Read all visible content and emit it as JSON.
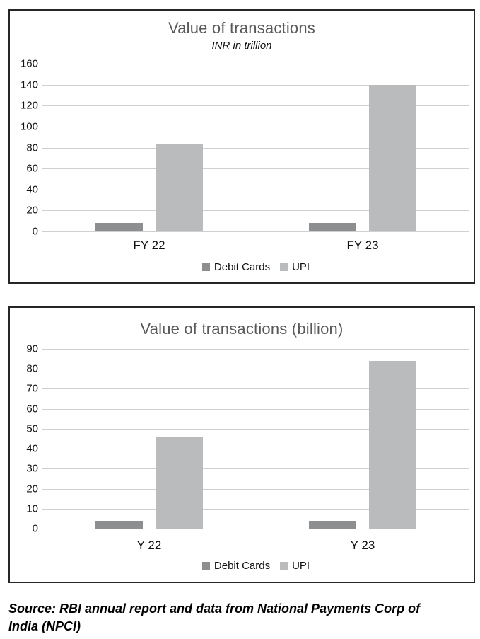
{
  "colors": {
    "debit_cards_bar": "#8c8e90",
    "upi_bar": "#b9bbbd",
    "gridline": "#d0d0d0",
    "title_text": "#595959",
    "frame_border": "#262626"
  },
  "chart_data": [
    {
      "type": "bar",
      "title": "Value of transactions",
      "subtitle": "INR in trillion",
      "categories": [
        "FY 22",
        "FY 23"
      ],
      "series": [
        {
          "name": "Debit Cards",
          "color": "#8c8e90",
          "values": [
            8,
            8
          ]
        },
        {
          "name": "UPI",
          "color": "#b9bbbd",
          "values": [
            84,
            140
          ]
        }
      ],
      "ylim": [
        0,
        160
      ],
      "ystep": 20,
      "yticks": [
        "160",
        "140",
        "120",
        "100",
        "80",
        "60",
        "40",
        "20",
        "0"
      ],
      "grid": true,
      "legend_position": "bottom"
    },
    {
      "type": "bar",
      "title": "Value of transactions (billion)",
      "subtitle": "",
      "categories": [
        "Y 22",
        "Y 23"
      ],
      "series": [
        {
          "name": "Debit Cards",
          "color": "#8c8e90",
          "values": [
            4,
            4
          ]
        },
        {
          "name": "UPI",
          "color": "#b9bbbd",
          "values": [
            46,
            84
          ]
        }
      ],
      "ylim": [
        0,
        90
      ],
      "ystep": 10,
      "yticks": [
        "90",
        "80",
        "70",
        "60",
        "50",
        "40",
        "30",
        "20",
        "10",
        "0"
      ],
      "grid": true,
      "legend_position": "bottom"
    }
  ],
  "source_note": {
    "lines": [
      "Source: RBI annual report and data from National Payments Corp of",
      "India (NPCI)"
    ]
  }
}
